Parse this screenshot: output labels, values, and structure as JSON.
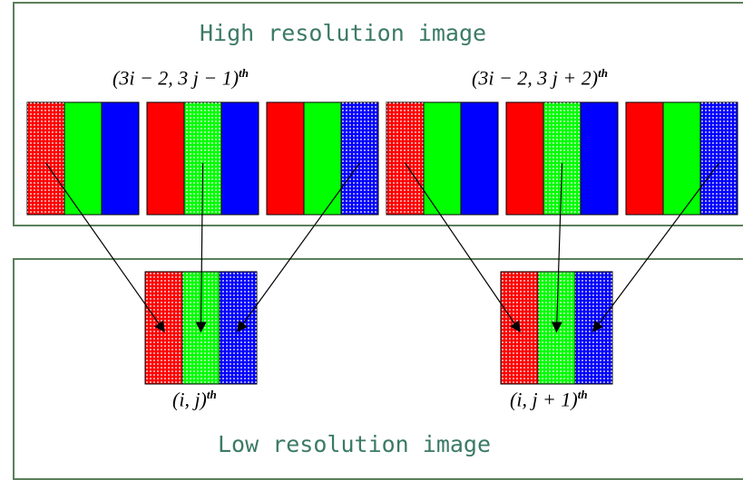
{
  "titles": {
    "high": "High resolution image",
    "low": "Low resolution image"
  },
  "labels": {
    "hr_pixel_1": "(3i − 2, 3 j − 1)",
    "hr_pixel_2": "(3i − 2, 3 j + 2)",
    "lr_pixel_1": "(i, j)",
    "lr_pixel_2": "(i, j + 1)",
    "superscript": "th"
  },
  "colors": {
    "red": "#ff0000",
    "green": "#00ff00",
    "blue": "#0000ff",
    "panel_border": "#5a7f5a",
    "title": "#3b7a66"
  },
  "high_res_groups": [
    {
      "highlight": "red"
    },
    {
      "highlight": "green"
    },
    {
      "highlight": "blue"
    },
    {
      "highlight": "red"
    },
    {
      "highlight": "green"
    },
    {
      "highlight": "blue"
    }
  ],
  "low_res_pixels": [
    {
      "sources": [
        0,
        1,
        2
      ]
    },
    {
      "sources": [
        3,
        4,
        5
      ]
    }
  ]
}
